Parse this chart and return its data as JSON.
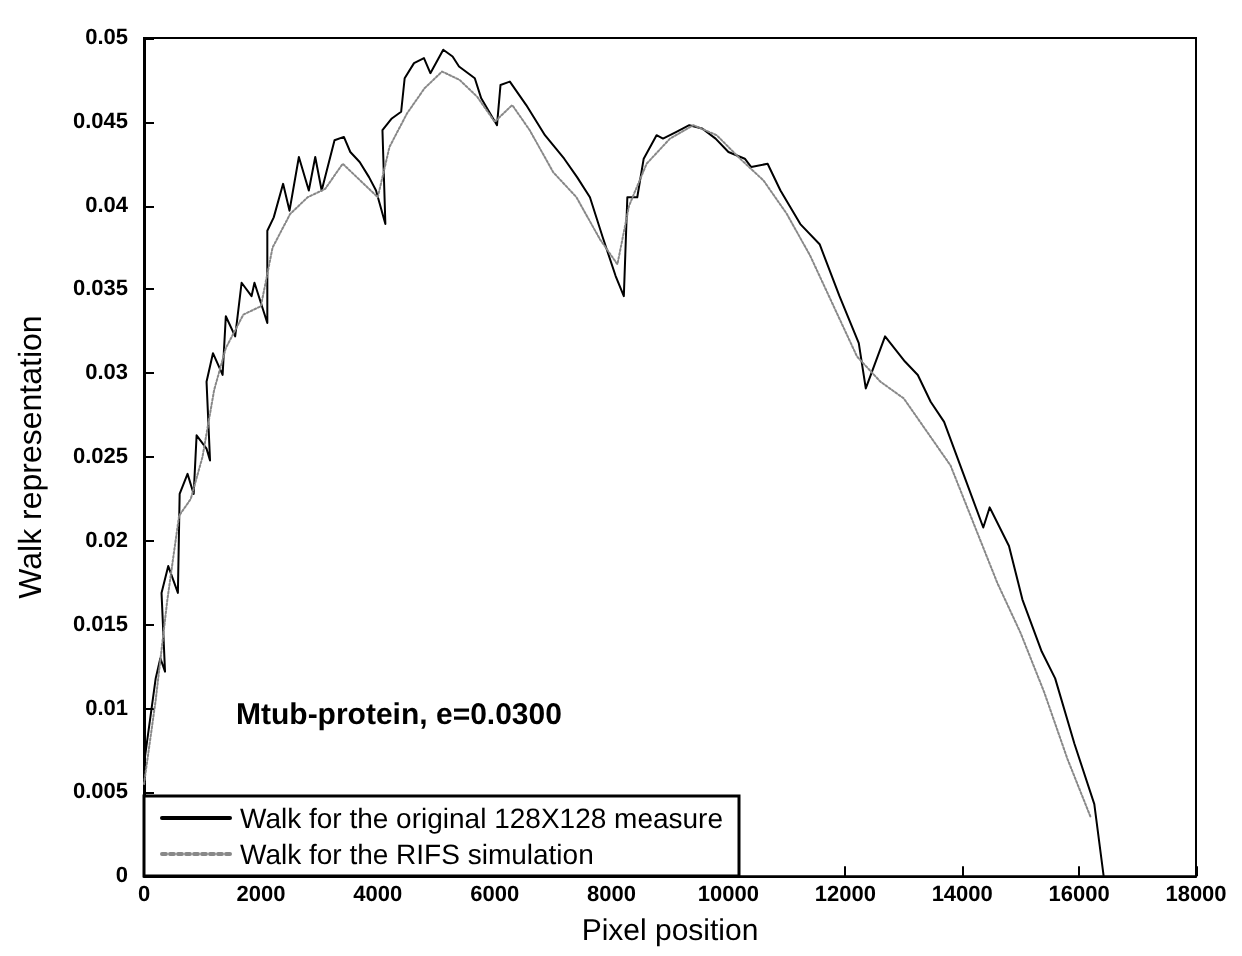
{
  "chart_data": {
    "type": "line",
    "xlabel": "Pixel position",
    "ylabel": "Walk representation",
    "annotations": [
      "Mtub-protein, e=0.0300"
    ],
    "xlim": [
      0,
      18000
    ],
    "xticks": [
      0,
      2000,
      4000,
      6000,
      8000,
      10000,
      12000,
      14000,
      16000,
      18000
    ],
    "ylim": [
      0,
      0.05
    ],
    "yticks": [
      0,
      0.005,
      0.01,
      0.015,
      0.02,
      0.025,
      0.03,
      0.035,
      0.04,
      0.045,
      0.05
    ],
    "grid": false,
    "legend": "bottom left",
    "marker": "none",
    "series": [
      {
        "name": "Walk for the original 128X128 measure",
        "color": "#000000",
        "line_style": "solid",
        "x": [
          0,
          200,
          280,
          360,
          300,
          415,
          580,
          610,
          745,
          850,
          900,
          1070,
          1130,
          1070,
          1180,
          1345,
          1400,
          1560,
          1670,
          1840,
          1890,
          2110,
          2110,
          2220,
          2380,
          2490,
          2650,
          2820,
          2930,
          3040,
          3260,
          3420,
          3530,
          3690,
          3850,
          3970,
          4130,
          4080,
          4240,
          4400,
          4460,
          4620,
          4790,
          4900,
          5120,
          5280,
          5390,
          5660,
          5770,
          6040,
          6100,
          6260,
          6540,
          6860,
          7190,
          7410,
          7630,
          7850,
          8070,
          8210,
          8270,
          8440,
          8550,
          8770,
          8880,
          9110,
          9330,
          9550,
          9780,
          10000,
          10280,
          10390,
          10670,
          10890,
          11230,
          11560,
          11900,
          12230,
          12350,
          12680,
          13020,
          13240,
          13460,
          13690,
          14020,
          14360,
          14470,
          14800,
          15030,
          15360,
          15590,
          15920,
          16260,
          16420
        ],
        "values": [
          0.0067,
          0.0118,
          0.013,
          0.0122,
          0.0169,
          0.0185,
          0.0169,
          0.0228,
          0.024,
          0.0228,
          0.0263,
          0.0255,
          0.0248,
          0.0295,
          0.0312,
          0.0299,
          0.0334,
          0.0322,
          0.0354,
          0.0346,
          0.0354,
          0.033,
          0.0385,
          0.0393,
          0.0413,
          0.0397,
          0.0429,
          0.0409,
          0.0429,
          0.0409,
          0.0439,
          0.0441,
          0.0432,
          0.0426,
          0.0417,
          0.0409,
          0.0389,
          0.0445,
          0.0452,
          0.0456,
          0.0476,
          0.0485,
          0.0488,
          0.0479,
          0.0493,
          0.0489,
          0.0483,
          0.0476,
          0.0464,
          0.0448,
          0.0472,
          0.0474,
          0.046,
          0.0442,
          0.0428,
          0.0417,
          0.0405,
          0.0381,
          0.0358,
          0.0346,
          0.0405,
          0.0405,
          0.0428,
          0.0442,
          0.044,
          0.0444,
          0.0448,
          0.0446,
          0.044,
          0.0432,
          0.0428,
          0.0423,
          0.0425,
          0.0409,
          0.0389,
          0.0377,
          0.0346,
          0.0318,
          0.0291,
          0.0322,
          0.0307,
          0.0299,
          0.0283,
          0.0271,
          0.024,
          0.0208,
          0.022,
          0.0197,
          0.0165,
          0.0134,
          0.0118,
          0.0079,
          0.0043,
          0
        ]
      },
      {
        "name": "Walk for the RIFS simulation",
        "color": "#888888",
        "line_style": "dotted",
        "x": [
          0,
          200,
          400,
          600,
          800,
          1000,
          1200,
          1400,
          1700,
          2000,
          2200,
          2500,
          2800,
          3100,
          3400,
          3700,
          4000,
          4200,
          4500,
          4800,
          5100,
          5400,
          5700,
          6000,
          6300,
          6600,
          7000,
          7400,
          7800,
          8100,
          8300,
          8600,
          9000,
          9400,
          9800,
          10200,
          10600,
          11000,
          11400,
          11800,
          12200,
          12600,
          13000,
          13400,
          13800,
          14200,
          14600,
          15000,
          15400,
          15800,
          16200
        ],
        "values": [
          0.0055,
          0.0105,
          0.0165,
          0.0215,
          0.0225,
          0.025,
          0.029,
          0.0315,
          0.0335,
          0.034,
          0.0375,
          0.0395,
          0.0405,
          0.041,
          0.0425,
          0.0415,
          0.0405,
          0.0435,
          0.0455,
          0.047,
          0.048,
          0.0475,
          0.0465,
          0.045,
          0.046,
          0.0445,
          0.042,
          0.0405,
          0.038,
          0.0365,
          0.04,
          0.0425,
          0.044,
          0.0448,
          0.0442,
          0.0428,
          0.0415,
          0.0395,
          0.037,
          0.034,
          0.031,
          0.0295,
          0.0285,
          0.0265,
          0.0245,
          0.021,
          0.0175,
          0.0145,
          0.011,
          0.007,
          0.0035
        ]
      }
    ]
  }
}
